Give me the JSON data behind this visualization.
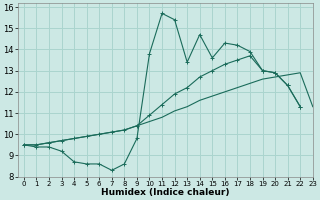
{
  "xlabel": "Humidex (Indice chaleur)",
  "bg_color": "#cce8e4",
  "grid_color": "#aad4ce",
  "line_color": "#1a6b5a",
  "xlim": [
    -0.5,
    23
  ],
  "ylim": [
    8,
    16.2
  ],
  "xticks": [
    0,
    1,
    2,
    3,
    4,
    5,
    6,
    7,
    8,
    9,
    10,
    11,
    12,
    13,
    14,
    15,
    16,
    17,
    18,
    19,
    20,
    21,
    22,
    23
  ],
  "yticks": [
    8,
    9,
    10,
    11,
    12,
    13,
    14,
    15,
    16
  ],
  "series1_y": [
    9.5,
    9.4,
    9.4,
    9.2,
    8.7,
    8.6,
    8.6,
    8.3,
    8.6,
    9.8,
    13.8,
    15.7,
    15.4,
    13.4,
    14.7,
    13.6,
    14.3,
    14.2,
    13.9,
    13.0,
    12.9,
    12.3,
    11.3,
    null
  ],
  "series2_y": [
    9.5,
    9.5,
    9.6,
    9.7,
    9.8,
    9.9,
    10.0,
    10.1,
    10.2,
    10.4,
    10.6,
    10.8,
    11.1,
    11.3,
    11.6,
    11.8,
    12.0,
    12.2,
    12.4,
    12.6,
    12.7,
    12.8,
    12.9,
    11.3
  ],
  "series3_y": [
    9.5,
    9.5,
    9.6,
    9.7,
    9.8,
    9.9,
    10.0,
    10.1,
    10.2,
    10.4,
    10.9,
    11.4,
    11.9,
    12.2,
    12.7,
    13.0,
    13.3,
    13.5,
    13.7,
    13.0,
    12.9,
    12.3,
    11.3,
    null
  ]
}
